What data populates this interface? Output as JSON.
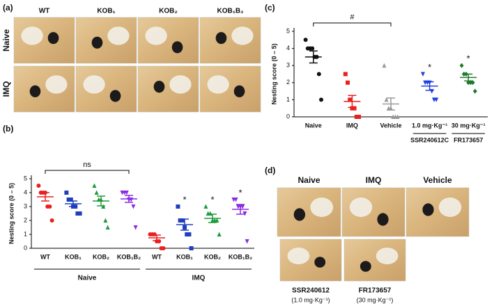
{
  "panels": {
    "a": {
      "label": "(a)",
      "columns": [
        "WT",
        "KOB₁",
        "KOB₂",
        "KOB₁B₂"
      ],
      "rows": [
        "Naive",
        "IMQ"
      ]
    },
    "d": {
      "label": "(d)",
      "photos": [
        {
          "caption": "Naive"
        },
        {
          "caption": "IMQ"
        },
        {
          "caption": "Vehicle"
        },
        {
          "caption": "SSR240612",
          "dose": "(1.0 mg·Kg⁻¹)"
        },
        {
          "caption": "FR173657",
          "dose": "(30 mg·Kg⁻¹)"
        }
      ]
    }
  },
  "chart_data": [
    {
      "type": "dot-plot",
      "panel_label": "(b)",
      "y_label": "Nesting score (0 – 5)",
      "ylim": [
        0,
        5
      ],
      "yticks": [
        0,
        1,
        2,
        3,
        4,
        5
      ],
      "categories": [
        {
          "label": "WT",
          "color": "#e8201e",
          "marker": "circle",
          "points": [
            4.5,
            4,
            4,
            4,
            3,
            3,
            2
          ],
          "mean": 3.7,
          "sem": 0.3
        },
        {
          "label": "KOB₁",
          "color": "#1f3fbf",
          "marker": "square",
          "points": [
            4,
            3.5,
            3.5,
            3,
            3,
            2.5,
            2.5
          ],
          "mean": 3.2,
          "sem": 0.2
        },
        {
          "label": "KOB₂",
          "color": "#1e9a3a",
          "marker": "triangle-up",
          "points": [
            4.5,
            4,
            3.5,
            3.5,
            3,
            2,
            1.5
          ],
          "mean": 3.4,
          "sem": 0.35
        },
        {
          "label": "KOB₁B₂",
          "color": "#8a2be2",
          "marker": "triangle-down",
          "points": [
            4,
            4,
            4,
            3.5,
            3.5,
            3,
            1.5
          ],
          "mean": 3.55,
          "sem": 0.25
        },
        {
          "label": "WT",
          "color": "#e8201e",
          "marker": "circle",
          "points": [
            1,
            1,
            1,
            0.5,
            0.5,
            0,
            0
          ],
          "mean": 0.75,
          "sem": 0.2
        },
        {
          "label": "KOB₁",
          "color": "#1f3fbf",
          "marker": "square",
          "points": [
            3,
            2,
            2,
            1.5,
            1,
            1,
            0
          ],
          "mean": 1.7,
          "sem": 0.4,
          "note": "*"
        },
        {
          "label": "KOB₂",
          "color": "#1e9a3a",
          "marker": "triangle-up",
          "points": [
            3,
            2.5,
            2.5,
            2,
            2,
            2,
            1
          ],
          "mean": 2.15,
          "sem": 0.3,
          "note": "*"
        },
        {
          "label": "KOB₁B₂",
          "color": "#8a2be2",
          "marker": "triangle-down",
          "points": [
            3.5,
            3.5,
            3,
            3,
            3,
            2.5,
            0.5
          ],
          "mean": 2.8,
          "sem": 0.35,
          "note": "*"
        }
      ],
      "groups": [
        {
          "name": "Naive",
          "categories": [
            0,
            3
          ]
        },
        {
          "name": "IMQ",
          "categories": [
            4,
            7
          ]
        }
      ],
      "brackets": [
        {
          "label": "ns",
          "categories": [
            0,
            3
          ]
        }
      ]
    },
    {
      "type": "dot-plot",
      "panel_label": "(c)",
      "y_label": "Nesting score (0 – 5)",
      "ylim": [
        0,
        5
      ],
      "yticks": [
        0,
        1,
        2,
        3,
        4,
        5
      ],
      "categories": [
        {
          "label": "Naive",
          "color": "#111111",
          "marker": "circle",
          "points": [
            4.5,
            4,
            4,
            4,
            3.5,
            3.5,
            2.5,
            1
          ],
          "mean": 3.5,
          "sem": 0.35
        },
        {
          "label": "IMQ",
          "color": "#e8201e",
          "marker": "square",
          "points": [
            2.5,
            2,
            1,
            0.5,
            0.5,
            0,
            0
          ],
          "mean": 0.9,
          "sem": 0.35
        },
        {
          "label": "Vehicle",
          "color": "#999999",
          "marker": "triangle-up",
          "points": [
            3,
            1,
            0.5,
            0.5,
            0,
            0,
            0
          ],
          "mean": 0.75,
          "sem": 0.35
        },
        {
          "label": "1.0 mg·Kg⁻¹",
          "group": "SSR240612C",
          "color": "#1f3fdf",
          "marker": "triangle-down",
          "points": [
            2.5,
            2,
            2,
            2,
            1.5,
            1,
            1
          ],
          "mean": 1.8,
          "sem": 0.25,
          "note": "*"
        },
        {
          "label": "30 mg·Kg⁻¹",
          "group": "FR173657",
          "color": "#1e7a2a",
          "marker": "diamond",
          "points": [
            3,
            2.5,
            2.5,
            2,
            2,
            2,
            1.5
          ],
          "mean": 2.3,
          "sem": 0.2,
          "note": "*"
        }
      ],
      "brackets": [
        {
          "label": "#",
          "categories": [
            0,
            2
          ]
        }
      ]
    }
  ]
}
